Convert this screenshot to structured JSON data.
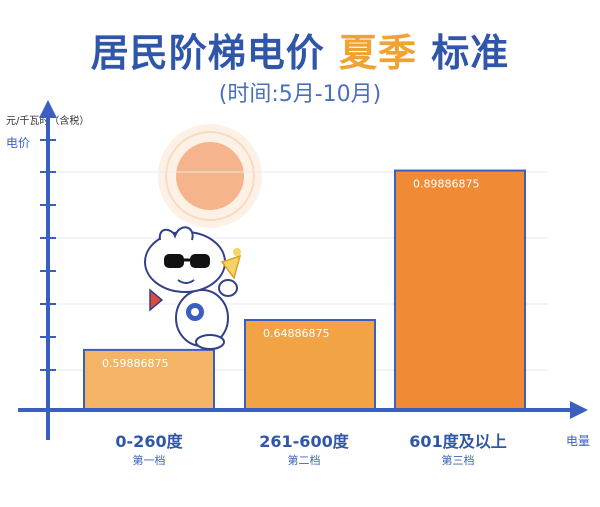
{
  "header": {
    "title_part1": "居民阶梯电价",
    "title_highlight": "夏季",
    "title_part2": "标准",
    "subtitle": "(时间:5月-10月)"
  },
  "axis": {
    "unit_note": "元/千瓦时（含税）",
    "y_label": "电价",
    "x_label": "电量"
  },
  "colors": {
    "title_blue": "#2f56a8",
    "accent_orange": "#f0a232",
    "axis_blue": "#3b5fc0",
    "bar_outline": "#3b5fc0",
    "bar_fills": [
      "#f3b565",
      "#f2a445",
      "#f08a35"
    ]
  },
  "decor": {
    "sun": "sun-icon",
    "mascot": "mascot-illustration"
  },
  "chart_data": {
    "type": "bar",
    "categories": [
      "0-260度",
      "261-600度",
      "601度及以上"
    ],
    "tiers": [
      "第一档",
      "第二档",
      "第三档"
    ],
    "values": [
      0.59886875,
      0.64886875,
      0.89886875
    ],
    "value_labels": [
      "0.59886875",
      "0.64886875",
      "0.89886875"
    ],
    "title": "居民阶梯电价夏季标准",
    "xlabel": "电量",
    "ylabel": "电价",
    "ylim": [
      0.5,
      0.95
    ],
    "grid": true
  }
}
